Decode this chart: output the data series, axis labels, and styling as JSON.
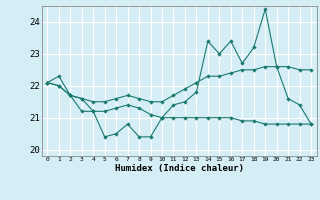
{
  "title": "",
  "xlabel": "Humidex (Indice chaleur)",
  "xlim": [
    -0.5,
    23.5
  ],
  "ylim": [
    19.8,
    24.5
  ],
  "yticks": [
    20,
    21,
    22,
    23,
    24
  ],
  "xticks": [
    0,
    1,
    2,
    3,
    4,
    5,
    6,
    7,
    8,
    9,
    10,
    11,
    12,
    13,
    14,
    15,
    16,
    17,
    18,
    19,
    20,
    21,
    22,
    23
  ],
  "background_color": "#d5eef5",
  "line_color": "#1a7a6e",
  "grid_color": "#ffffff",
  "line1": [
    22.1,
    22.3,
    21.7,
    21.2,
    21.2,
    20.4,
    20.5,
    20.8,
    20.4,
    20.4,
    21.0,
    21.4,
    21.5,
    21.8,
    23.4,
    23.0,
    23.4,
    22.7,
    23.2,
    24.4,
    22.6,
    21.6,
    21.4,
    20.8
  ],
  "line2": [
    22.1,
    22.0,
    21.7,
    21.6,
    21.5,
    21.5,
    21.6,
    21.7,
    21.6,
    21.5,
    21.5,
    21.7,
    21.9,
    22.1,
    22.3,
    22.3,
    22.4,
    22.5,
    22.5,
    22.6,
    22.6,
    22.6,
    22.5,
    22.5
  ],
  "line3": [
    22.1,
    22.0,
    21.7,
    21.6,
    21.2,
    21.2,
    21.3,
    21.4,
    21.3,
    21.1,
    21.0,
    21.0,
    21.0,
    21.0,
    21.0,
    21.0,
    21.0,
    20.9,
    20.9,
    20.8,
    20.8,
    20.8,
    20.8,
    20.8
  ]
}
